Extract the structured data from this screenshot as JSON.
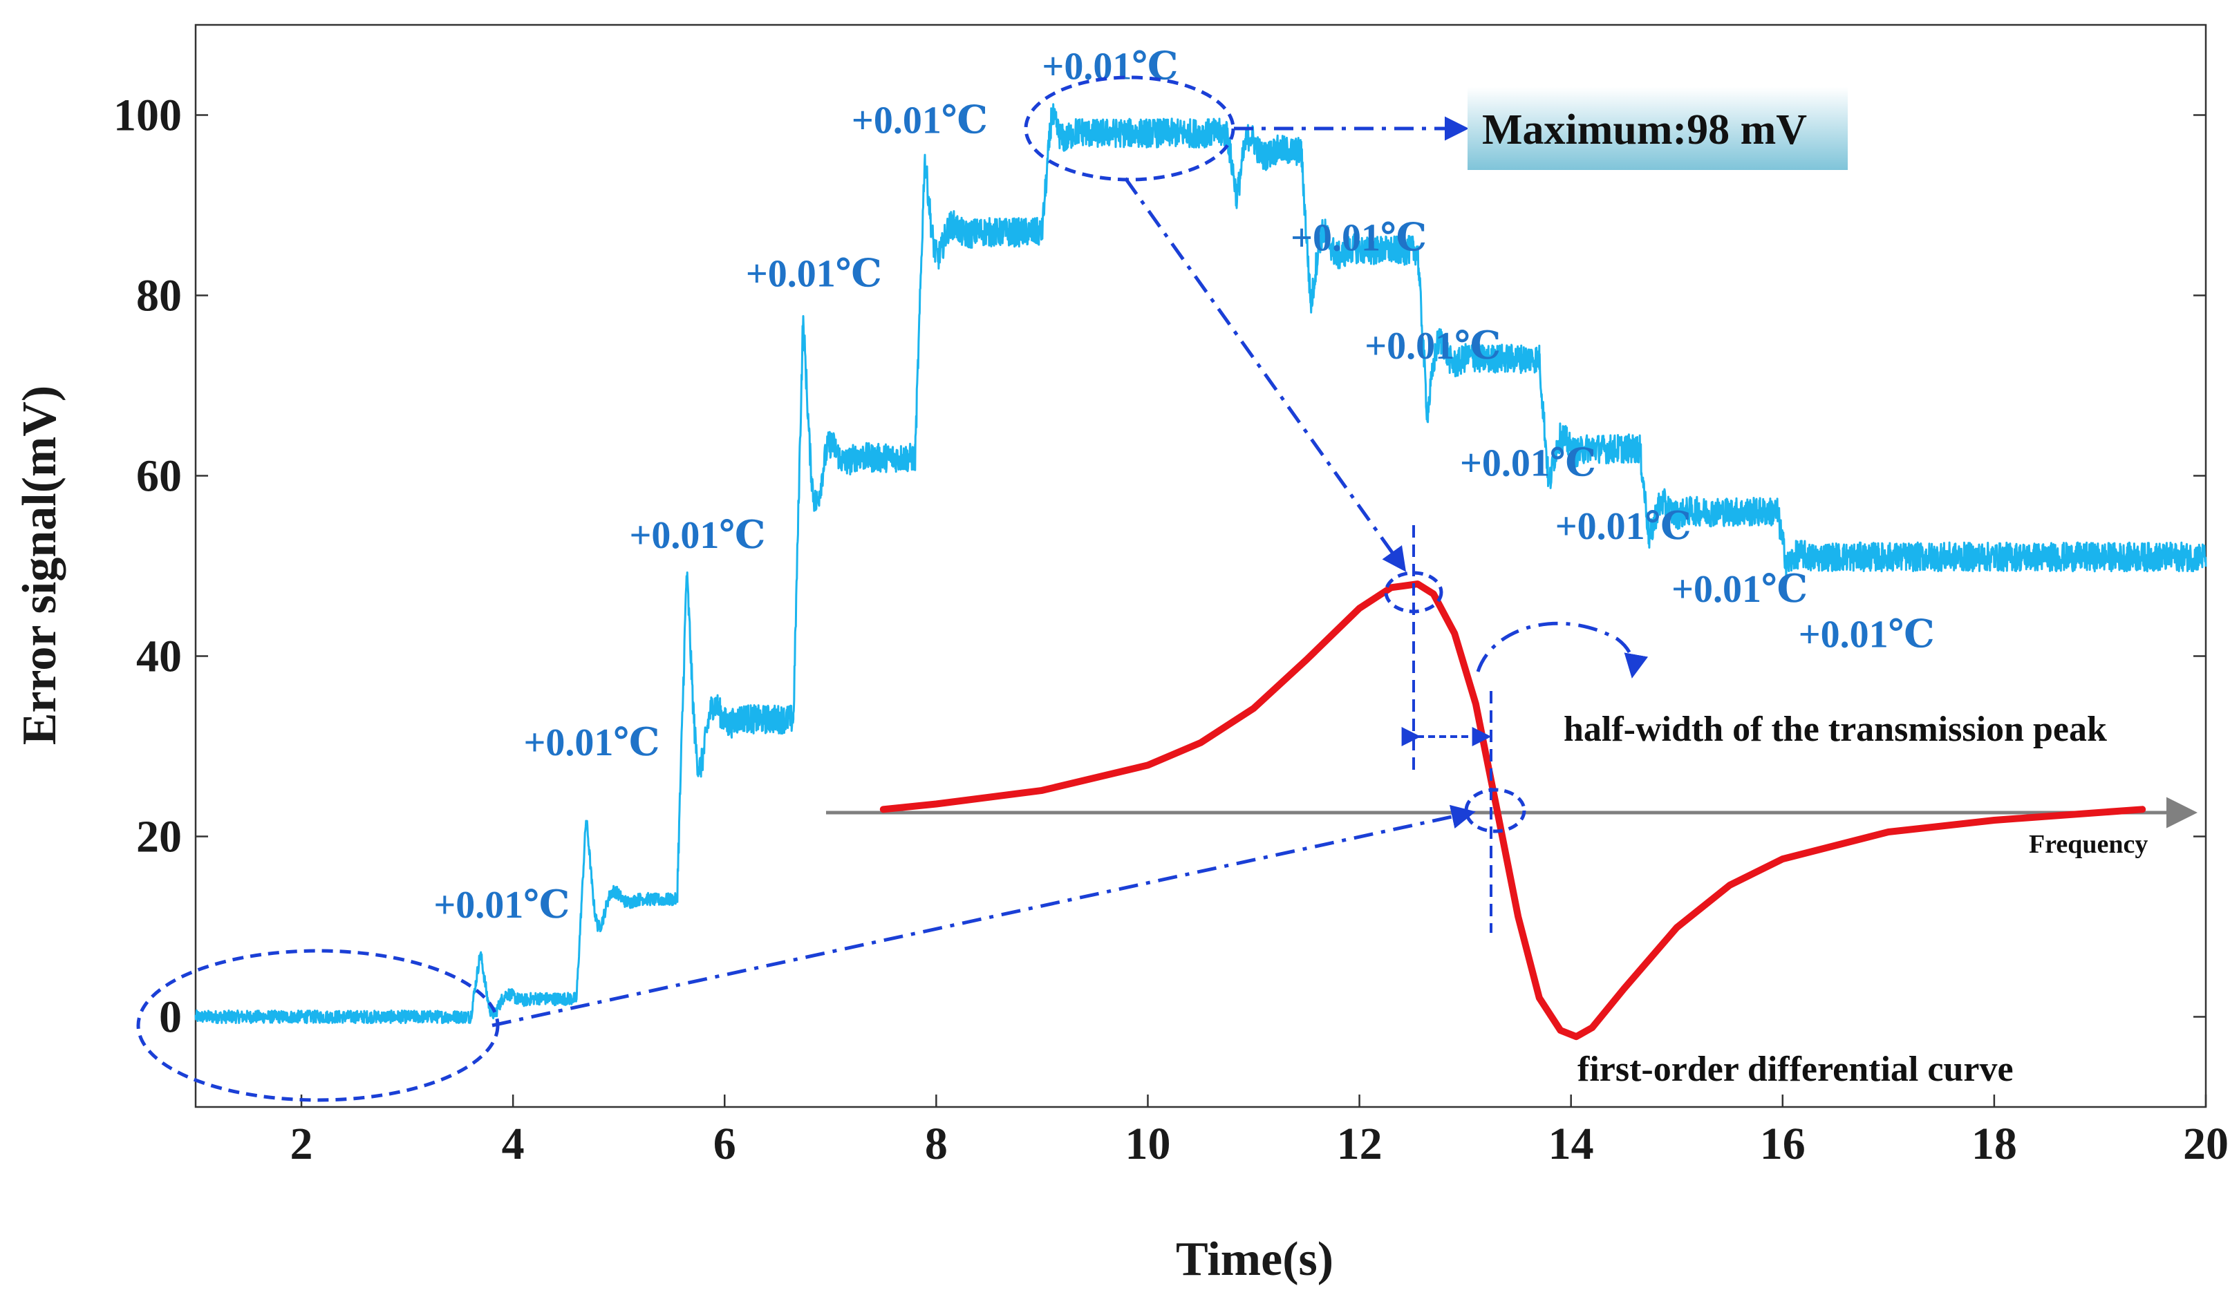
{
  "chart_data": {
    "type": "line",
    "title": "",
    "xlabel": "Time(s)",
    "ylabel": "Error signal(mV)",
    "xlim": [
      1,
      20
    ],
    "ylim": [
      -10,
      110
    ],
    "xticks": [
      2,
      4,
      6,
      8,
      10,
      12,
      14,
      16,
      18,
      20
    ],
    "yticks": [
      0,
      20,
      40,
      60,
      80,
      100
    ],
    "grid": false,
    "colors": {
      "signal": "#1ab4ee",
      "derivative": "#e8141a",
      "annotation": "#1a3fd6",
      "label": "#1f73c8",
      "axis_arrow": "#808080"
    },
    "series": [
      {
        "name": "Error signal",
        "levels": [
          {
            "t_start": 1.0,
            "t_end": 3.6,
            "level": 0,
            "peak": 0
          },
          {
            "t_start": 3.6,
            "t_end": 4.6,
            "level": 2,
            "peak": 7
          },
          {
            "t_start": 4.6,
            "t_end": 5.55,
            "level": 13,
            "peak": 22
          },
          {
            "t_start": 5.55,
            "t_end": 6.65,
            "level": 33,
            "peak": 49
          },
          {
            "t_start": 6.65,
            "t_end": 7.8,
            "level": 62,
            "peak": 77
          },
          {
            "t_start": 7.8,
            "t_end": 9.0,
            "level": 87,
            "peak": 95
          },
          {
            "t_start": 9.0,
            "t_end": 10.75,
            "level": 98,
            "peak": 100
          },
          {
            "t_start": 10.75,
            "t_end": 11.45,
            "level": 96,
            "peak": 91
          },
          {
            "t_start": 11.45,
            "t_end": 12.55,
            "level": 85,
            "peak": 79
          },
          {
            "t_start": 12.55,
            "t_end": 13.7,
            "level": 73,
            "peak": 67
          },
          {
            "t_start": 13.7,
            "t_end": 14.65,
            "level": 63,
            "peak": 59
          },
          {
            "t_start": 14.65,
            "t_end": 15.95,
            "level": 56,
            "peak": 53
          },
          {
            "t_start": 15.95,
            "t_end": 20.0,
            "level": 51,
            "peak": 50
          }
        ]
      },
      {
        "name": "first-order differential curve",
        "x": [
          7.5,
          8,
          9,
          10,
          10.5,
          11,
          11.5,
          12,
          12.3,
          12.55,
          12.7,
          12.9,
          13.1,
          13.3,
          13.5,
          13.7,
          13.9,
          14.05,
          14.2,
          14.5,
          15,
          15.5,
          16,
          17,
          18,
          19.4
        ],
        "y": [
          23.0,
          23.6,
          25.1,
          27.9,
          30.4,
          34.2,
          39.6,
          45.3,
          47.6,
          48.0,
          46.9,
          42.5,
          34.7,
          23.0,
          11.1,
          2.1,
          -1.5,
          -2.2,
          -1.2,
          3.1,
          9.9,
          14.6,
          17.5,
          20.5,
          21.8,
          23.0
        ]
      }
    ],
    "step_labels": [
      {
        "text": "+0.01℃",
        "x": 3.25,
        "y": 11
      },
      {
        "text": "+0.01℃",
        "x": 4.1,
        "y": 29
      },
      {
        "text": "+0.01℃",
        "x": 5.1,
        "y": 52
      },
      {
        "text": "+0.01℃",
        "x": 6.2,
        "y": 81
      },
      {
        "text": "+0.01℃",
        "x": 7.2,
        "y": 98
      },
      {
        "text": "+0.01℃",
        "x": 9.0,
        "y": 104
      },
      {
        "text": "+0.01℃",
        "x": 11.35,
        "y": 85
      },
      {
        "text": "+0.01℃",
        "x": 12.05,
        "y": 73
      },
      {
        "text": "+0.01℃",
        "x": 12.95,
        "y": 60
      },
      {
        "text": "+0.01℃",
        "x": 13.85,
        "y": 53
      },
      {
        "text": "+0.01℃",
        "x": 14.95,
        "y": 46
      },
      {
        "text": "+0.01℃",
        "x": 16.15,
        "y": 41
      }
    ],
    "annotations": {
      "maximum": "Maximum:98 mV",
      "half_width": "half-width of the transmission peak",
      "diff_curve": "first-order differential curve",
      "frequency": "Frequency"
    }
  }
}
